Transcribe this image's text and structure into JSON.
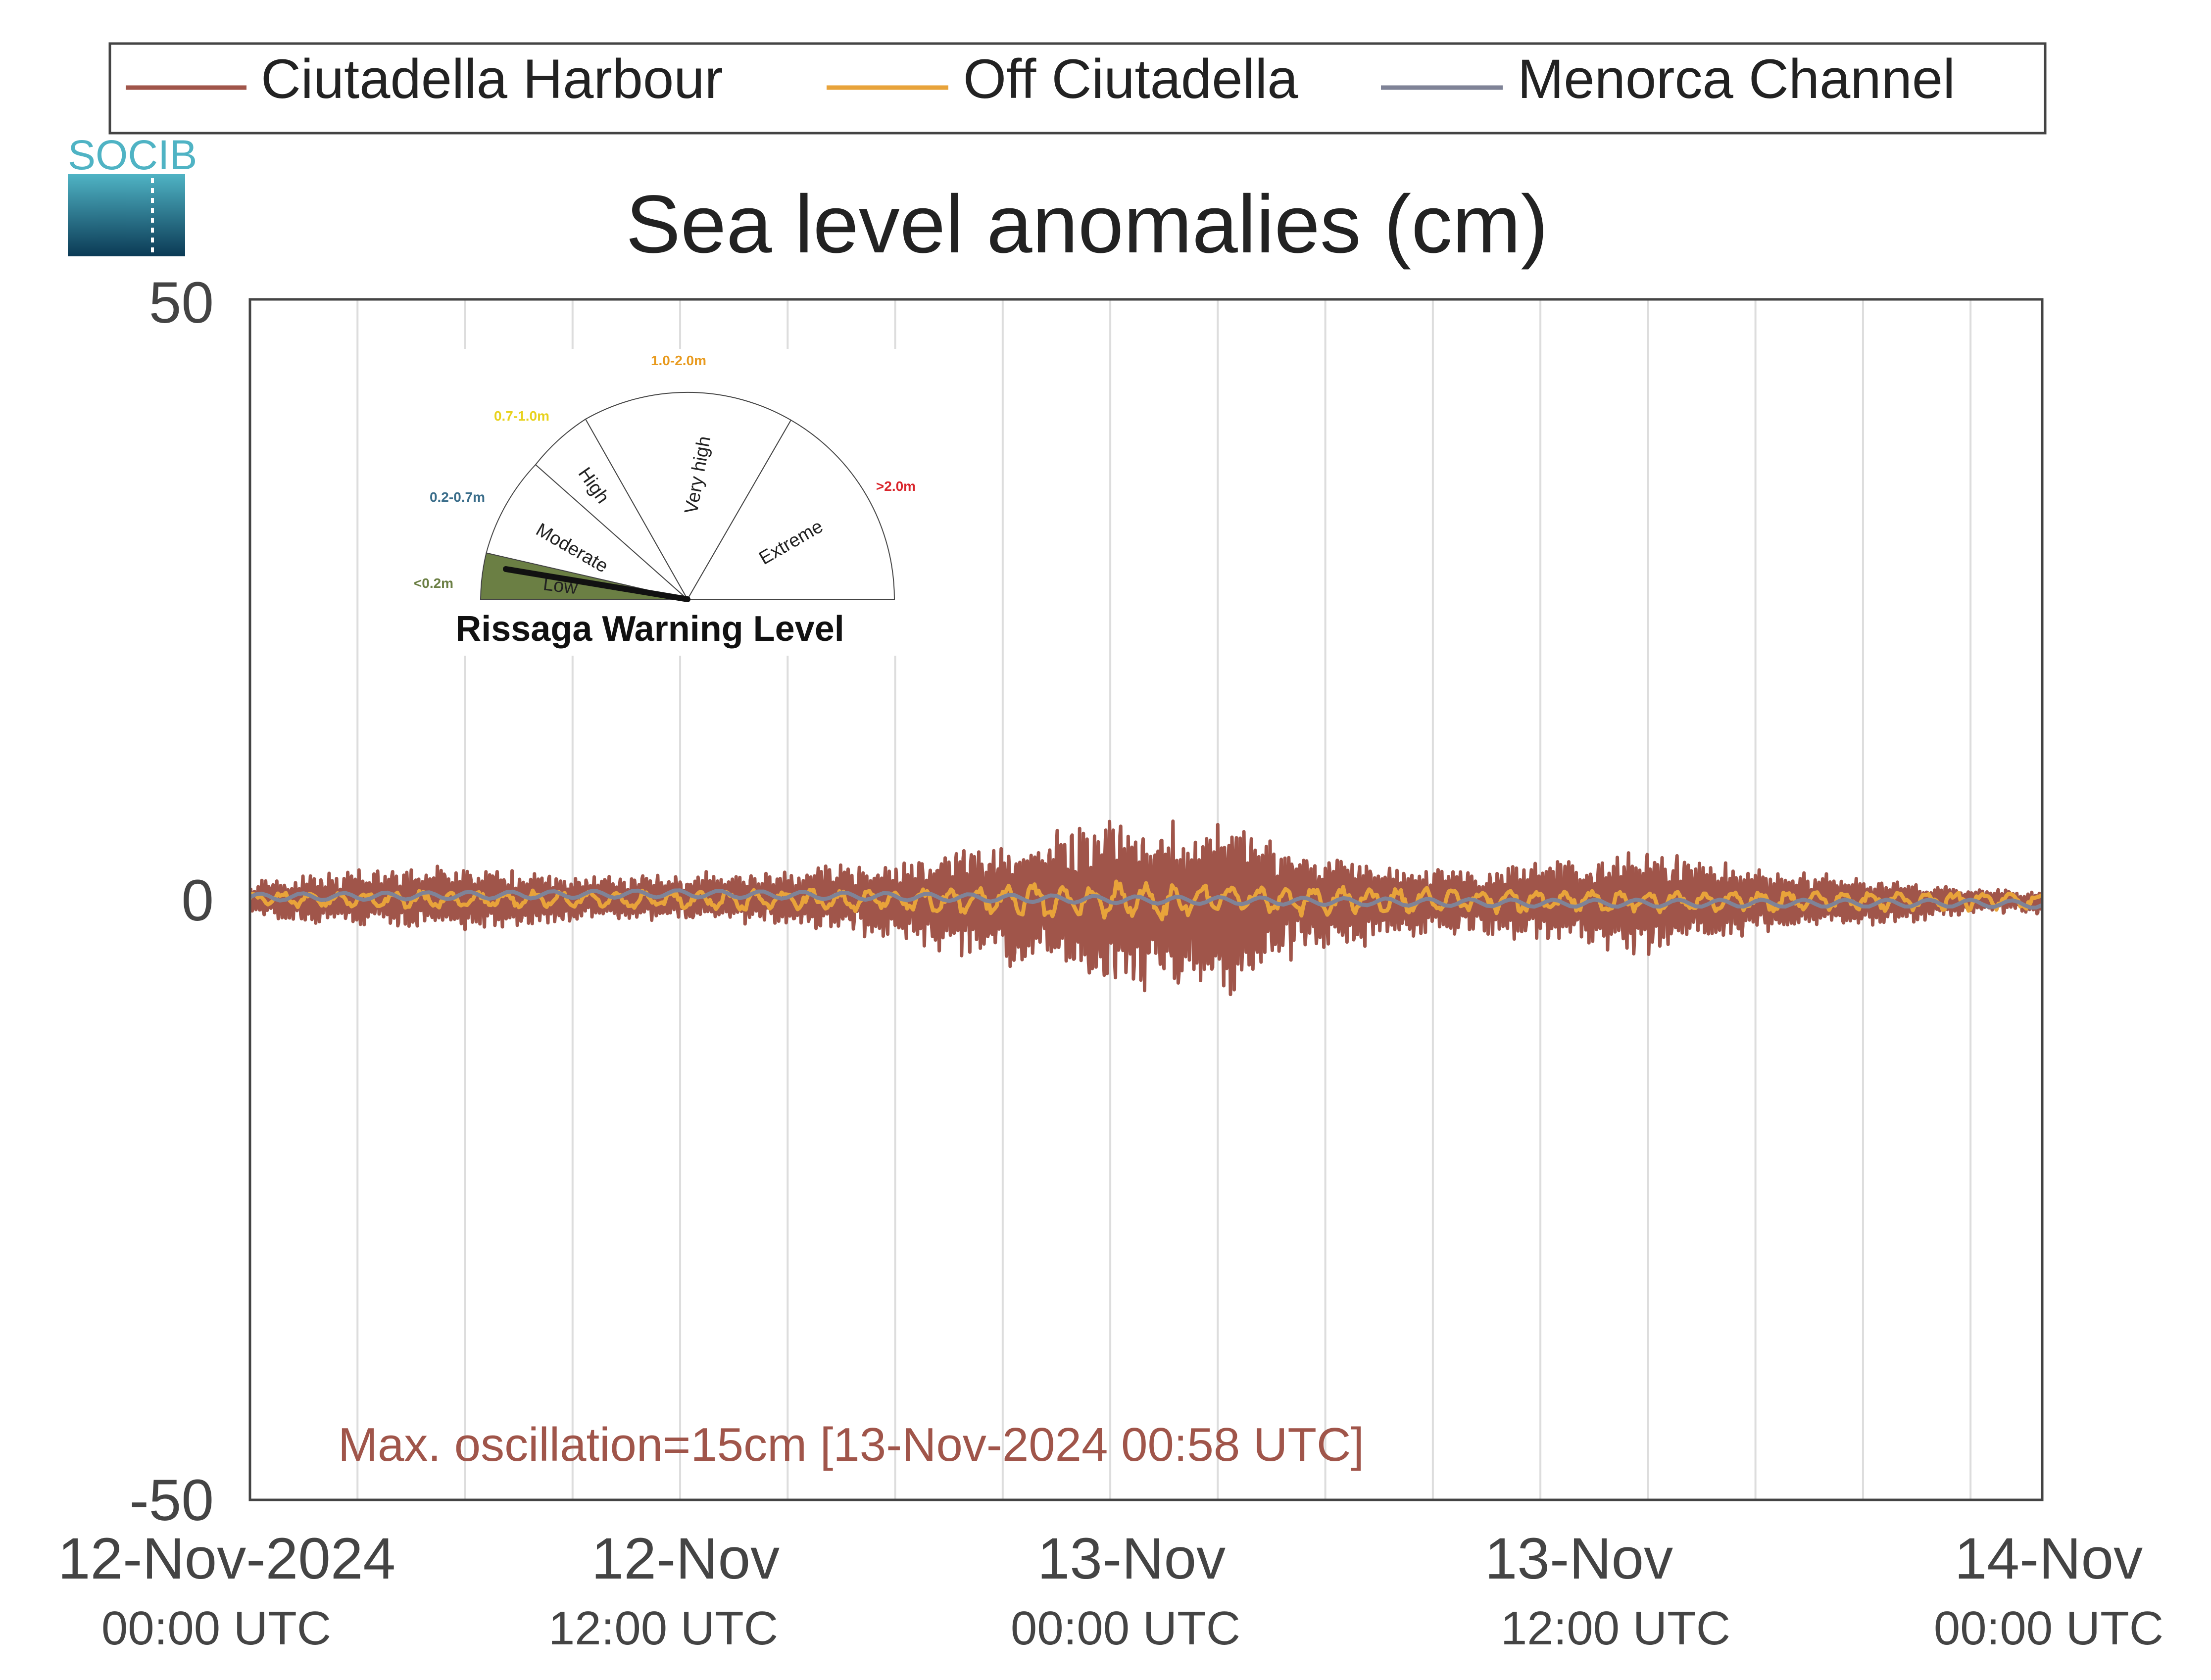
{
  "logo": {
    "text": "SOCIB"
  },
  "chart_data": {
    "type": "line",
    "title": "Sea level anomalies (cm)",
    "ylim": [
      -50,
      50
    ],
    "y_ticks": [
      "50",
      "0",
      "-50"
    ],
    "x_range": [
      "2024-11-12 00:00",
      "2024-11-14 02:00"
    ],
    "x_ticks": [
      {
        "at": "2024-11-12 00:00",
        "date": "12-Nov-2024",
        "time": "00:00 UTC"
      },
      {
        "at": "2024-11-12 12:00",
        "date": "12-Nov",
        "time": "12:00 UTC"
      },
      {
        "at": "2024-11-13 00:00",
        "date": "13-Nov",
        "time": "00:00 UTC"
      },
      {
        "at": "2024-11-13 12:00",
        "date": "13-Nov",
        "time": "12:00 UTC"
      },
      {
        "at": "2024-11-14 00:00",
        "date": "14-Nov",
        "time": "00:00 UTC"
      }
    ],
    "grid": true,
    "legend_position": "top",
    "series": [
      {
        "name": "Ciutadella Harbour",
        "color": "#a0554a",
        "time": [
          "2024-11-12 00:00",
          "2024-11-12 03:00",
          "2024-11-12 06:00",
          "2024-11-12 09:00",
          "2024-11-12 12:00",
          "2024-11-12 15:00",
          "2024-11-12 18:00",
          "2024-11-12 21:00",
          "2024-11-13 00:00",
          "2024-11-13 03:00",
          "2024-11-13 06:00",
          "2024-11-13 09:00",
          "2024-11-13 12:00",
          "2024-11-13 15:00",
          "2024-11-13 18:00",
          "2024-11-13 21:00",
          "2024-11-14 00:00",
          "2024-11-14 02:00"
        ],
        "max": [
          1.5,
          2.6,
          3.0,
          2.0,
          2.4,
          2.6,
          3.5,
          4.8,
          7.0,
          6.8,
          4.0,
          2.5,
          3.2,
          4.2,
          3.0,
          1.8,
          1.0,
          0.6
        ],
        "min": [
          -1.5,
          -2.4,
          -3.0,
          -2.0,
          -1.8,
          -2.2,
          -3.5,
          -5.5,
          -7.5,
          -8.5,
          -4.5,
          -3.0,
          -3.5,
          -4.8,
          -2.8,
          -2.2,
          -1.5,
          -1.2
        ]
      },
      {
        "name": "Off Ciutadella",
        "color": "#e8a33a",
        "time": [
          "2024-11-12 00:00",
          "2024-11-12 06:00",
          "2024-11-12 12:00",
          "2024-11-12 18:00",
          "2024-11-13 00:00",
          "2024-11-13 06:00",
          "2024-11-13 12:00",
          "2024-11-13 18:00",
          "2024-11-14 00:00",
          "2024-11-14 02:00"
        ],
        "max": [
          0.6,
          0.8,
          0.8,
          1.0,
          1.6,
          1.2,
          0.8,
          0.7,
          0.6,
          0.5
        ],
        "min": [
          -0.6,
          -0.8,
          -0.8,
          -1.0,
          -1.8,
          -1.4,
          -1.2,
          -1.0,
          -1.0,
          -1.0
        ]
      },
      {
        "name": "Menorca Channel",
        "color": "#7f8397",
        "time": [
          "2024-11-12 00:00",
          "2024-11-12 12:00",
          "2024-11-13 00:00",
          "2024-11-13 12:00",
          "2024-11-14 00:00",
          "2024-11-14 02:00"
        ],
        "values": [
          0.2,
          0.5,
          0.0,
          -0.3,
          -0.3,
          -0.4
        ]
      }
    ],
    "annotation": "Max. oscillation=15cm [13-Nov-2024 00:58 UTC]",
    "gauge": {
      "title": "Rissaga Warning Level",
      "level": "Low",
      "sectors": [
        {
          "name": "Low",
          "range": "<0.2m",
          "color": "#6b7f44"
        },
        {
          "name": "Moderate",
          "range": "0.2-0.7m",
          "color": "#3a6d8a"
        },
        {
          "name": "High",
          "range": "0.7-1.0m",
          "color": "#e8d21d"
        },
        {
          "name": "Very high",
          "range": "1.0-2.0m",
          "color": "#e89a1e"
        },
        {
          "name": "Extreme",
          "range": ">2.0m",
          "color": "#d9252b"
        }
      ]
    }
  }
}
